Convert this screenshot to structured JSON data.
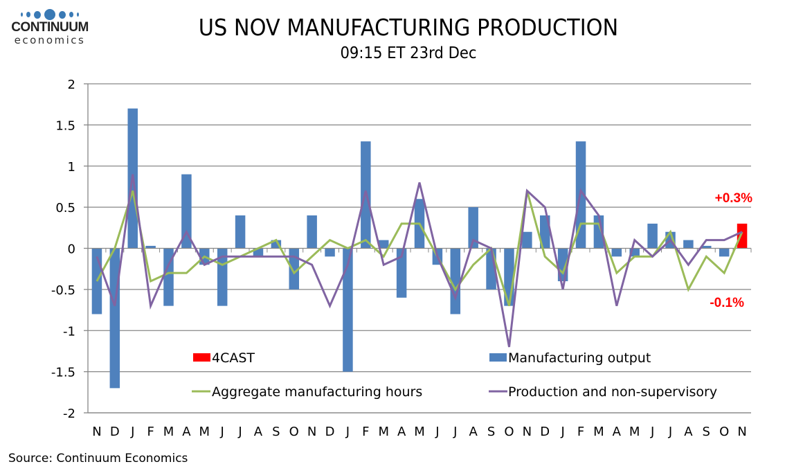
{
  "logo": {
    "name": "CONTINUUM",
    "sub": "economics",
    "color": "#3a7ab5"
  },
  "header": {
    "title": "US NOV MANUFACTURING PRODUCTION",
    "subtitle": "09:15 ET 23rd Dec"
  },
  "footer": {
    "source": "Source: Continuum Economics"
  },
  "colors": {
    "bar": "#4f81bd",
    "forecast": "#ff0000",
    "hours": "#9bbb59",
    "production": "#8064a2",
    "grid": "#868686",
    "annotation": "#ff0000"
  },
  "chart_data": {
    "type": "bar",
    "title": "US NOV MANUFACTURING PRODUCTION",
    "subtitle": "09:15 ET 23rd Dec",
    "xlabel": "",
    "ylabel": "",
    "ylim": [
      -2,
      2
    ],
    "yticks": [
      2,
      1.5,
      1,
      0.5,
      0,
      -0.5,
      -1,
      -1.5,
      -2
    ],
    "ytick_labels": [
      "2",
      "1.5",
      "1",
      "0.5",
      "0",
      "-0.5",
      "-1",
      "-1.5",
      "-2"
    ],
    "grid": true,
    "categories": [
      "N",
      "D",
      "J",
      "F",
      "M",
      "A",
      "M",
      "J",
      "J",
      "A",
      "S",
      "O",
      "N",
      "D",
      "J",
      "F",
      "M",
      "A",
      "M",
      "J",
      "J",
      "A",
      "S",
      "O",
      "N",
      "D",
      "J",
      "F",
      "M",
      "A",
      "M",
      "J",
      "J",
      "A",
      "S",
      "O",
      "N"
    ],
    "series": [
      {
        "name": "Manufacturing output",
        "type": "bar",
        "values": [
          -0.8,
          -1.7,
          1.7,
          0.03,
          -0.7,
          0.9,
          -0.2,
          -0.7,
          0.4,
          -0.1,
          0.1,
          -0.5,
          0.4,
          -0.1,
          -1.5,
          1.3,
          0.1,
          -0.6,
          0.6,
          -0.2,
          -0.8,
          0.5,
          -0.5,
          -0.7,
          0.2,
          0.4,
          -0.4,
          1.3,
          0.4,
          -0.1,
          -0.1,
          0.3,
          0.2,
          0.1,
          0.03,
          -0.1,
          null
        ]
      },
      {
        "name": "4CAST",
        "type": "bar",
        "values": [
          null,
          null,
          null,
          null,
          null,
          null,
          null,
          null,
          null,
          null,
          null,
          null,
          null,
          null,
          null,
          null,
          null,
          null,
          null,
          null,
          null,
          null,
          null,
          null,
          null,
          null,
          null,
          null,
          null,
          null,
          null,
          null,
          null,
          null,
          null,
          null,
          0.3
        ]
      },
      {
        "name": "Aggregate manufacturing hours",
        "type": "line",
        "values": [
          -0.4,
          0.0,
          0.7,
          -0.4,
          -0.3,
          -0.3,
          -0.1,
          -0.2,
          -0.1,
          0.0,
          0.1,
          -0.3,
          -0.1,
          0.1,
          0.0,
          0.1,
          -0.1,
          0.3,
          0.3,
          -0.1,
          -0.5,
          -0.2,
          0.0,
          -0.7,
          0.7,
          -0.1,
          -0.3,
          0.3,
          0.3,
          -0.3,
          -0.1,
          -0.1,
          0.2,
          -0.5,
          -0.1,
          -0.3,
          0.2
        ]
      },
      {
        "name": "Production and non-supervisory",
        "type": "line",
        "values": [
          -0.1,
          -0.7,
          0.9,
          -0.7,
          -0.2,
          0.2,
          -0.2,
          -0.1,
          -0.1,
          -0.1,
          -0.1,
          -0.1,
          -0.2,
          -0.7,
          -0.2,
          0.7,
          -0.2,
          -0.1,
          0.8,
          -0.1,
          -0.6,
          0.1,
          0.0,
          -1.2,
          0.7,
          0.5,
          -0.5,
          0.7,
          0.4,
          -0.7,
          0.1,
          -0.1,
          0.1,
          -0.2,
          0.1,
          0.1,
          0.2
        ]
      }
    ],
    "legend": {
      "placement": "bottom-inside",
      "entries": [
        "4CAST",
        "Manufacturing output",
        "Aggregate manufacturing hours",
        "Production and non-supervisory"
      ]
    },
    "annotations": [
      {
        "text": "+0.3%",
        "series": "4CAST",
        "position": "above-last"
      },
      {
        "text": "-0.1%",
        "series": "Manufacturing output",
        "position": "below-last"
      }
    ]
  }
}
